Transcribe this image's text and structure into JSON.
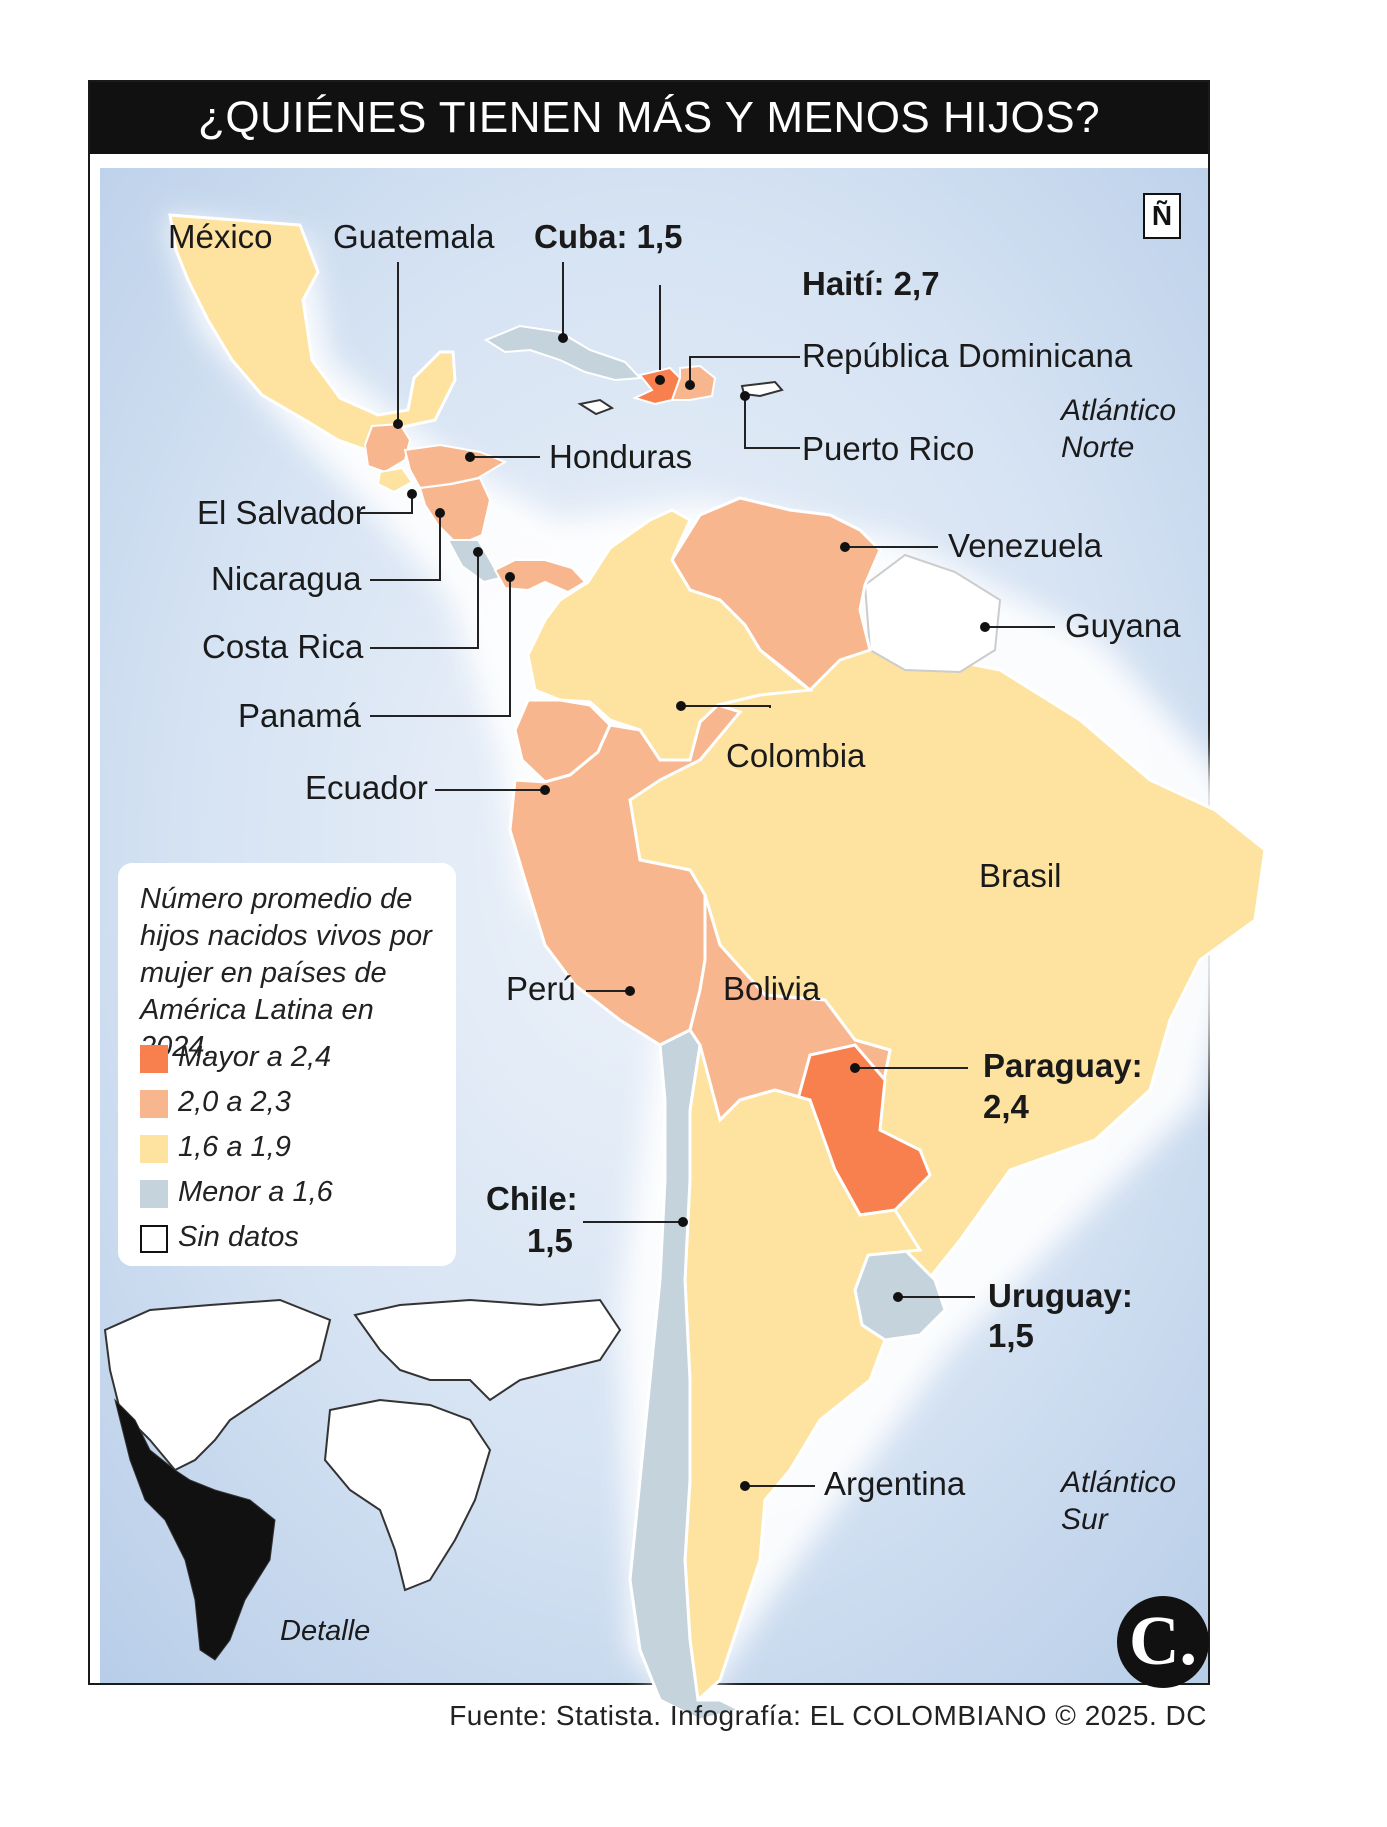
{
  "title": "¿QUIÉNES TIENEN MÁS Y MENOS HIJOS?",
  "north_symbol": "Ñ",
  "colors": {
    "mayor_2_4": "#f8804f",
    "r_2_0_2_3": "#f8b68e",
    "r_1_6_1_9": "#fde39f",
    "menor_1_6": "#c4d3dc",
    "sin_datos": "#ffffff",
    "ocean": "#c8d9ee"
  },
  "legend": {
    "title": "Número promedio de hijos nacidos vivos por mujer en países de América Latina en 2024.",
    "items": [
      {
        "label": "Mayor a 2,4",
        "color": "#f8804f"
      },
      {
        "label": "2,0 a 2,3",
        "color": "#f8b68e"
      },
      {
        "label": "1,6 a 1,9",
        "color": "#fde39f"
      },
      {
        "label": "Menor a 1,6",
        "color": "#c4d3dc"
      },
      {
        "label": "Sin datos",
        "color": "#ffffff"
      }
    ]
  },
  "countries": {
    "mexico": {
      "label": "México",
      "category": "1,6 a 1,9"
    },
    "guatemala": {
      "label": "Guatemala",
      "category": "2,0 a 2,3"
    },
    "cuba": {
      "label": "Cuba: 1,5",
      "category": "Menor a 1,6"
    },
    "haiti": {
      "label": "Haití: 2,7",
      "category": "Mayor a 2,4"
    },
    "rep_dominicana": {
      "label": "República Dominicana",
      "category": "2,0 a 2,3"
    },
    "puerto_rico": {
      "label": "Puerto Rico",
      "category": "Sin datos"
    },
    "honduras": {
      "label": "Honduras",
      "category": "2,0 a 2,3"
    },
    "el_salvador": {
      "label": "El Salvador",
      "category": "1,6 a 1,9"
    },
    "nicaragua": {
      "label": "Nicaragua",
      "category": "2,0 a 2,3"
    },
    "costa_rica": {
      "label": "Costa Rica",
      "category": "Menor a 1,6"
    },
    "panama": {
      "label": "Panamá",
      "category": "2,0 a 2,3"
    },
    "venezuela": {
      "label": "Venezuela",
      "category": "2,0 a 2,3"
    },
    "guyana": {
      "label": "Guyana",
      "category": "Sin datos"
    },
    "colombia": {
      "label": "Colombia",
      "category": "1,6 a 1,9"
    },
    "ecuador": {
      "label": "Ecuador",
      "category": "2,0 a 2,3"
    },
    "brasil": {
      "label": "Brasil",
      "category": "1,6 a 1,9"
    },
    "peru": {
      "label": "Perú",
      "category": "2,0 a 2,3"
    },
    "bolivia": {
      "label": "Bolivia",
      "category": "2,0 a 2,3"
    },
    "paraguay": {
      "label_line1": "Paraguay:",
      "label_line2": "2,4",
      "category": "Mayor a 2,4"
    },
    "chile": {
      "label_line1": "Chile:",
      "label_line2": "1,5",
      "category": "Menor a 1,6"
    },
    "uruguay": {
      "label_line1": "Uruguay:",
      "label_line2": "1,5",
      "category": "Menor a 1,6"
    },
    "argentina": {
      "label": "Argentina",
      "category": "1,6 a 1,9"
    }
  },
  "oceans": {
    "atlantico_norte_line1": "Atlántico",
    "atlantico_norte_line2": "Norte",
    "atlantico_sur_line1": "Atlántico",
    "atlantico_sur_line2": "Sur"
  },
  "inset_label": "Detalle",
  "source": "Fuente: Statista. Infografía: EL COLOMBIANO © 2025. DC",
  "logo_letter": "C."
}
